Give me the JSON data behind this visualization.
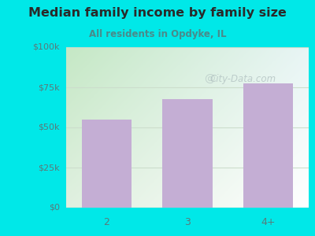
{
  "title": "Median family income by family size",
  "subtitle": "All residents in Opdyke, IL",
  "categories": [
    "2",
    "3",
    "4+"
  ],
  "values": [
    55000,
    67500,
    77500
  ],
  "bar_color": "#c4aed4",
  "ylim": [
    0,
    100000
  ],
  "yticks": [
    0,
    25000,
    50000,
    75000,
    100000
  ],
  "ytick_labels": [
    "$0",
    "$25k",
    "$50k",
    "$75k",
    "$100k"
  ],
  "background_color": "#00e8e8",
  "title_color": "#2a2a2a",
  "subtitle_color": "#4a8a8a",
  "tick_color": "#5a7a7a",
  "grid_color": "#ccddcc",
  "watermark": "City-Data.com",
  "watermark_color": "#b0c0c0",
  "plot_grad_topleft": "#c8e8c8",
  "plot_grad_right": "#f0f8f8"
}
